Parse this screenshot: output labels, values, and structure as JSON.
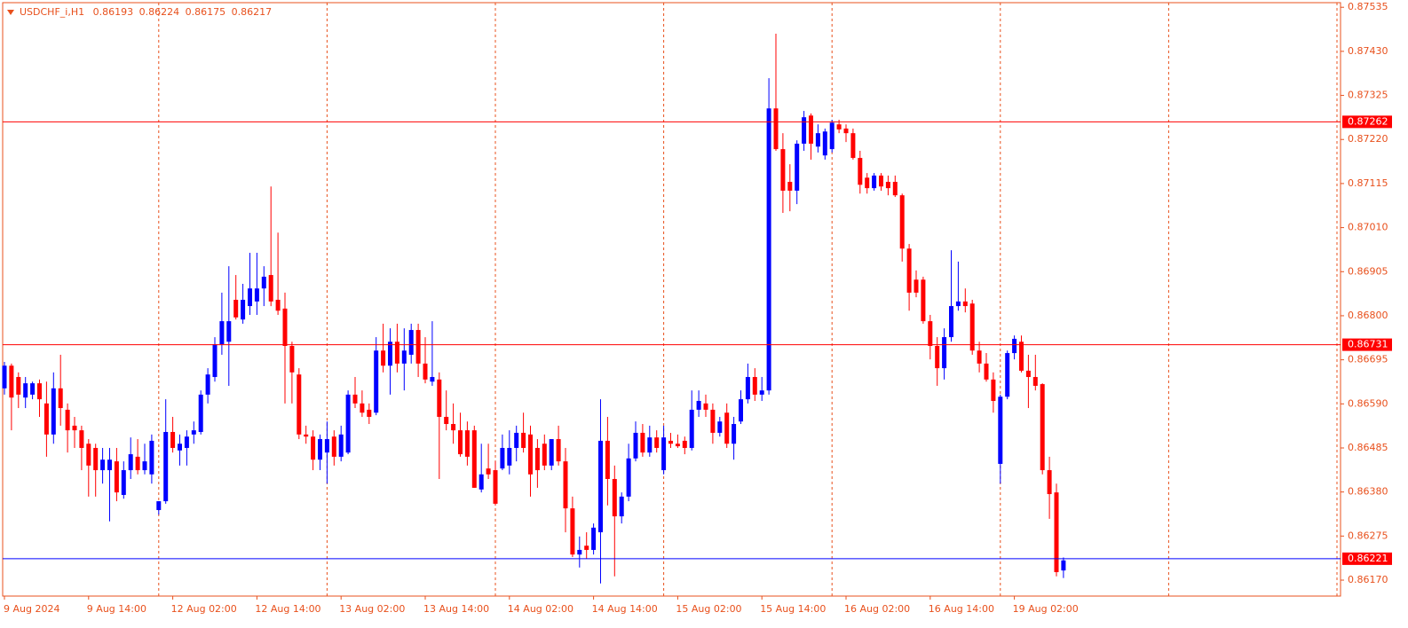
{
  "chart_data": {
    "type": "candlestick",
    "symbol": "USDCHF_i,H1",
    "up_color": "#0000ff",
    "down_color": "#ff0000",
    "text_color": "#e8501c",
    "grid": true,
    "categories": [
      "9 Aug 2024",
      null,
      null,
      null,
      null,
      null,
      null,
      null,
      null,
      null,
      null,
      null,
      "9 Aug 14:00",
      null,
      null,
      null,
      null,
      null,
      null,
      null,
      null,
      null,
      null,
      null,
      "12 Aug 02:00",
      null,
      null,
      null,
      null,
      null,
      null,
      null,
      null,
      null,
      null,
      null,
      "12 Aug 14:00",
      null,
      null,
      null,
      null,
      null,
      null,
      null,
      null,
      null,
      null,
      null,
      "13 Aug 02:00",
      null,
      null,
      null,
      null,
      null,
      null,
      null,
      null,
      null,
      null,
      null,
      "13 Aug 14:00",
      null,
      null,
      null,
      null,
      null,
      null,
      null,
      null,
      null,
      null,
      null,
      "14 Aug 02:00",
      null,
      null,
      null,
      null,
      null,
      null,
      null,
      null,
      null,
      null,
      null,
      "14 Aug 14:00",
      null,
      null,
      null,
      null,
      null,
      null,
      null,
      null,
      null,
      null,
      null,
      "15 Aug 02:00",
      null,
      null,
      null,
      null,
      null,
      null,
      null,
      null,
      null,
      null,
      null,
      "15 Aug 14:00",
      null,
      null,
      null,
      null,
      null,
      null,
      null,
      null,
      null,
      null,
      null,
      "16 Aug 02:00",
      null,
      null,
      null,
      null,
      null,
      null,
      null,
      null,
      null,
      null,
      null,
      "16 Aug 14:00",
      null,
      null,
      null,
      null,
      null,
      null,
      null,
      null,
      null,
      null,
      null,
      "19 Aug 02:00",
      null,
      null,
      null,
      null,
      null,
      null,
      null
    ],
    "open": [
      0.86627,
      0.86681,
      0.86654,
      0.86605,
      0.86612,
      0.86639,
      0.86591,
      0.86517,
      0.86627,
      0.86576,
      0.86538,
      0.86527,
      0.86495,
      0.86485,
      0.86432,
      0.86432,
      0.86453,
      0.86373,
      0.86432,
      0.86464,
      0.86432,
      0.86422,
      0.86337,
      0.86358,
      0.86523,
      0.86479,
      0.86485,
      0.86517,
      0.86523,
      0.86612,
      0.86654,
      0.86732,
      0.86738,
      0.86838,
      0.86791,
      0.86823,
      0.86834,
      0.86865,
      0.86897,
      0.86838,
      0.86817,
      0.86728,
      0.8666,
      0.86517,
      0.86512,
      0.86457,
      0.86474,
      0.86512,
      0.86464,
      0.86474,
      0.86612,
      0.86591,
      0.86576,
      0.86569,
      0.86717,
      0.86681,
      0.86738,
      0.86686,
      0.86707,
      0.86766,
      0.86686,
      0.86643,
      0.86648,
      0.86559,
      0.86542,
      0.86527,
      0.86527,
      0.86527,
      0.86386,
      0.86436,
      0.86432,
      0.86436,
      0.86443,
      0.86485,
      0.86521,
      0.86517,
      0.86485,
      0.86495,
      0.86443,
      0.86506,
      0.86453,
      0.86341,
      0.86231,
      0.86252,
      0.86242,
      0.86284,
      0.86502,
      0.86411,
      0.86322,
      0.86369,
      0.8646,
      0.86521,
      0.86474,
      0.8651,
      0.86432,
      0.86502,
      0.86495,
      0.86502,
      0.86485,
      0.86576,
      0.86591,
      0.86576,
      0.86521,
      0.86569,
      0.86495,
      0.86548,
      0.86601,
      0.86654,
      0.86612,
      0.86622,
      0.87294,
      0.87197,
      0.87119,
      0.87098,
      0.8721,
      0.87277,
      0.87203,
      0.87182,
      0.87197,
      0.87256,
      0.87246,
      0.87235,
      0.87176,
      0.87129,
      0.87104,
      0.87134,
      0.87119,
      0.87119,
      0.87087,
      0.8696,
      0.86886,
      0.86886,
      0.86787,
      0.86728,
      0.86675,
      0.86749,
      0.86823,
      0.86834,
      0.86829,
      0.86717,
      0.86686,
      0.86648,
      0.86447,
      0.86607,
      0.86711,
      0.86738,
      0.86669,
      0.86654,
      0.86637,
      0.86432,
      0.86379,
      0.86193
    ],
    "high": [
      0.8669,
      0.86686,
      0.86665,
      0.86654,
      0.86643,
      0.86648,
      0.86643,
      0.86665,
      0.86707,
      0.86591,
      0.86559,
      0.86538,
      0.86506,
      0.86495,
      0.86485,
      0.86485,
      0.86485,
      0.86453,
      0.8651,
      0.86506,
      0.86495,
      0.86517,
      0.86358,
      0.86601,
      0.86559,
      0.86517,
      0.86527,
      0.86548,
      0.86622,
      0.86675,
      0.86749,
      0.86855,
      0.86918,
      0.86897,
      0.86876,
      0.8695,
      0.8695,
      0.86918,
      0.87108,
      0.86998,
      0.86855,
      0.86738,
      0.86675,
      0.86538,
      0.86527,
      0.86517,
      0.86548,
      0.86527,
      0.86538,
      0.86622,
      0.86654,
      0.86622,
      0.86591,
      0.86749,
      0.86781,
      0.8677,
      0.86781,
      0.8677,
      0.86781,
      0.86781,
      0.86749,
      0.86787,
      0.86665,
      0.86622,
      0.86591,
      0.86569,
      0.86548,
      0.86538,
      0.86495,
      0.86495,
      0.86453,
      0.86517,
      0.86527,
      0.86538,
      0.86569,
      0.86538,
      0.86506,
      0.86517,
      0.86506,
      0.86538,
      0.86485,
      0.86369,
      0.86274,
      0.86284,
      0.86305,
      0.86601,
      0.86559,
      0.86443,
      0.86379,
      0.86495,
      0.86548,
      0.86542,
      0.86538,
      0.86527,
      0.86538,
      0.86521,
      0.86517,
      0.86512,
      0.86622,
      0.86622,
      0.86612,
      0.86591,
      0.86559,
      0.86591,
      0.86559,
      0.86622,
      0.86686,
      0.86675,
      0.86654,
      0.87366,
      0.87472,
      0.87235,
      0.87161,
      0.87218,
      0.87288,
      0.87282,
      0.87256,
      0.87246,
      0.87267,
      0.87267,
      0.87256,
      0.87246,
      0.87193,
      0.8714,
      0.8714,
      0.8714,
      0.87134,
      0.87134,
      0.87091,
      0.86971,
      0.86908,
      0.86893,
      0.86802,
      0.86749,
      0.8677,
      0.86956,
      0.86929,
      0.86865,
      0.86838,
      0.86738,
      0.86711,
      0.86665,
      0.86612,
      0.86717,
      0.86753,
      0.86753,
      0.86707,
      0.86707,
      0.86639,
      0.86464,
      0.864,
      0.86224
    ],
    "low": [
      0.86612,
      0.86527,
      0.8658,
      0.8658,
      0.86601,
      0.86559,
      0.86464,
      0.86495,
      0.86538,
      0.86474,
      0.86485,
      0.86432,
      0.86369,
      0.86369,
      0.864,
      0.8631,
      0.86358,
      0.86364,
      0.86411,
      0.86422,
      0.86422,
      0.864,
      0.86326,
      0.86352,
      0.86474,
      0.86443,
      0.86443,
      0.86495,
      0.86517,
      0.86591,
      0.86643,
      0.86707,
      0.86633,
      0.86791,
      0.86781,
      0.86802,
      0.86802,
      0.86823,
      0.86823,
      0.86802,
      0.86591,
      0.86591,
      0.86506,
      0.86495,
      0.86432,
      0.86432,
      0.864,
      0.86443,
      0.86453,
      0.8647,
      0.8658,
      0.86559,
      0.86542,
      0.86563,
      0.86665,
      0.86612,
      0.86665,
      0.86622,
      0.86686,
      0.86654,
      0.86639,
      0.86633,
      0.86411,
      0.86527,
      0.86495,
      0.86464,
      0.86443,
      0.8639,
      0.86379,
      0.86411,
      0.86348,
      0.86432,
      0.86422,
      0.86453,
      0.86474,
      0.86369,
      0.8639,
      0.86432,
      0.86432,
      0.86443,
      0.86284,
      0.86225,
      0.862,
      0.86221,
      0.86231,
      0.86162,
      0.86348,
      0.86179,
      0.86305,
      0.86358,
      0.86453,
      0.86464,
      0.86464,
      0.86474,
      0.86422,
      0.86485,
      0.86485,
      0.8647,
      0.86479,
      0.86559,
      0.86559,
      0.86495,
      0.86512,
      0.86485,
      0.86457,
      0.86542,
      0.86591,
      0.86597,
      0.86597,
      0.86612,
      0.87193,
      0.87045,
      0.87049,
      0.87066,
      0.87193,
      0.87172,
      0.87189,
      0.87172,
      0.87189,
      0.87235,
      0.87214,
      0.87172,
      0.87091,
      0.87091,
      0.87098,
      0.87098,
      0.87087,
      0.87083,
      0.86929,
      0.86812,
      0.86844,
      0.86781,
      0.86696,
      0.86633,
      0.86648,
      0.86738,
      0.86812,
      0.86808,
      0.86707,
      0.86665,
      0.86643,
      0.86569,
      0.864,
      0.86601,
      0.86696,
      0.86665,
      0.8658,
      0.86622,
      0.86422,
      0.86316,
      0.86179,
      0.86175
    ],
    "close": [
      0.86681,
      0.86605,
      0.86612,
      0.86639,
      0.86639,
      0.86601,
      0.86517,
      0.86627,
      0.8658,
      0.86527,
      0.86527,
      0.86485,
      0.86443,
      0.86432,
      0.86457,
      0.86457,
      0.86379,
      0.86432,
      0.8647,
      0.86432,
      0.86453,
      0.86502,
      0.86358,
      0.86523,
      0.86485,
      0.86495,
      0.86512,
      0.86527,
      0.86612,
      0.8666,
      0.86732,
      0.86787,
      0.86787,
      0.86796,
      0.86838,
      0.86865,
      0.86865,
      0.86893,
      0.86834,
      0.86812,
      0.86728,
      0.86665,
      0.86517,
      0.86512,
      0.86457,
      0.86506,
      0.86506,
      0.86464,
      0.86517,
      0.86612,
      0.86591,
      0.86569,
      0.86559,
      0.86717,
      0.86681,
      0.86738,
      0.86686,
      0.86717,
      0.86766,
      0.86686,
      0.86648,
      0.86654,
      0.86559,
      0.86542,
      0.86527,
      0.8647,
      0.86464,
      0.8639,
      0.86422,
      0.86422,
      0.86352,
      0.86485,
      0.86485,
      0.86521,
      0.86485,
      0.86422,
      0.86432,
      0.86443,
      0.86506,
      0.86453,
      0.86341,
      0.86231,
      0.86242,
      0.86242,
      0.86295,
      0.86502,
      0.86411,
      0.86322,
      0.86369,
      0.8646,
      0.86521,
      0.86474,
      0.8651,
      0.86485,
      0.8651,
      0.86495,
      0.86489,
      0.86485,
      0.86576,
      0.86597,
      0.86576,
      0.86521,
      0.86548,
      0.86495,
      0.86542,
      0.86601,
      0.86654,
      0.86612,
      0.86622,
      0.87294,
      0.87197,
      0.87098,
      0.87098,
      0.8721,
      0.87273,
      0.8721,
      0.87235,
      0.87239,
      0.8726,
      0.87244,
      0.87235,
      0.87176,
      0.87112,
      0.87104,
      0.87134,
      0.87108,
      0.87104,
      0.87087,
      0.8696,
      0.86855,
      0.86855,
      0.86787,
      0.86728,
      0.86675,
      0.86749,
      0.86823,
      0.86834,
      0.86823,
      0.86717,
      0.86686,
      0.86648,
      0.86597,
      0.86607,
      0.86711,
      0.86745,
      0.86669,
      0.86654,
      0.86633,
      0.86432,
      0.86375,
      0.86189,
      0.86217
    ],
    "ylim": [
      0.86132,
      0.87546
    ],
    "yticks": [
      0.87535,
      {
        "value": 0.8743,
        "label": "0.87430"
      },
      0.87325,
      {
        "value": 0.8722,
        "label": "0.87220"
      },
      0.87115,
      {
        "value": 0.8701,
        "label": "0.87010"
      },
      0.86905,
      {
        "value": 0.868,
        "label": "0.86800"
      },
      0.86695,
      {
        "value": 0.8659,
        "label": "0.86590"
      },
      0.86485,
      {
        "value": 0.8638,
        "label": "0.86380"
      },
      0.86275,
      {
        "value": 0.8617,
        "label": "0.86170"
      }
    ],
    "hlines": [
      {
        "value": 0.87262,
        "color": "#ff0000"
      },
      {
        "value": 0.86731,
        "color": "#ff0000"
      },
      {
        "value": 0.86221,
        "color": "#0000ff"
      }
    ]
  }
}
